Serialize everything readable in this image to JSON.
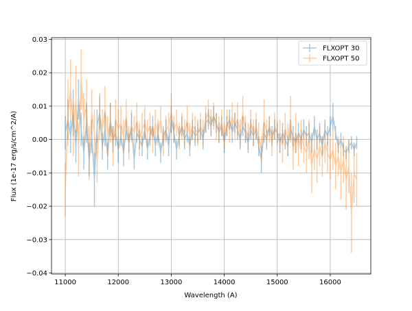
{
  "chart_data": {
    "type": "line",
    "title": "",
    "xlabel": "Wavelength (A)",
    "ylabel": "Flux (1e-17 erg/s/cm^2/A)",
    "xlim": [
      10740,
      16765
    ],
    "ylim": [
      -0.0403,
      0.0305
    ],
    "xticks": [
      11000,
      12000,
      13000,
      14000,
      15000,
      16000
    ],
    "xtick_labels": [
      "11000",
      "12000",
      "13000",
      "14000",
      "15000",
      "16000"
    ],
    "yticks": [
      -0.04,
      -0.03,
      -0.02,
      -0.01,
      0.0,
      0.01,
      0.02,
      0.03
    ],
    "ytick_labels": [
      "−0.04",
      "−0.03",
      "−0.02",
      "−0.01",
      "0.00",
      "0.01",
      "0.02",
      "0.03"
    ],
    "grid": true,
    "legend_position": "top-right",
    "x_start": 11000,
    "x_step": 50,
    "series": [
      {
        "name": "FLXOPT 30",
        "color": "#1f77b4",
        "values": [
          0.002,
          0.006,
          0.001,
          0.008,
          -0.002,
          0.012,
          0.003,
          -0.004,
          0.005,
          -0.006,
          0.001,
          -0.012,
          0.004,
          0.008,
          -0.002,
          0.003,
          -0.005,
          0.006,
          0.0,
          0.002,
          -0.003,
          0.001,
          -0.004,
          0.003,
          -0.001,
          0.004,
          -0.006,
          0.002,
          0.0,
          -0.002,
          0.003,
          -0.003,
          0.001,
          0.004,
          -0.002,
          0.002,
          -0.004,
          0.001,
          0.003,
          -0.002,
          0.006,
          0.002,
          -0.003,
          0.001,
          0.004,
          0.0,
          0.002,
          -0.002,
          0.003,
          0.001,
          0.002,
          0.003,
          0.0,
          0.005,
          0.006,
          0.004,
          0.007,
          0.005,
          0.002,
          0.004,
          -0.001,
          0.004,
          0.006,
          0.002,
          0.005,
          0.003,
          0.0,
          0.004,
          0.002,
          -0.001,
          0.003,
          0.001,
          0.003,
          -0.002,
          -0.006,
          0.002,
          0.0,
          0.004,
          0.001,
          0.003,
          0.002,
          -0.001,
          0.002,
          0.0,
          -0.002,
          0.003,
          0.001,
          -0.001,
          0.002,
          0.0,
          0.003,
          0.001,
          0.002,
          -0.001,
          0.004,
          0.0,
          0.002,
          -0.002,
          0.003,
          0.001,
          0.004,
          0.007,
          0.002,
          -0.002,
          0.0,
          -0.003,
          -0.004,
          -0.002,
          -0.001,
          -0.003,
          -0.001
        ],
        "yerr": [
          0.005,
          0.006,
          0.005,
          0.007,
          0.005,
          0.006,
          0.005,
          0.005,
          0.006,
          0.005,
          0.005,
          0.008,
          0.005,
          0.005,
          0.004,
          0.005,
          0.004,
          0.005,
          0.004,
          0.004,
          0.004,
          0.003,
          0.004,
          0.003,
          0.003,
          0.004,
          0.003,
          0.003,
          0.003,
          0.003,
          0.003,
          0.003,
          0.003,
          0.003,
          0.003,
          0.003,
          0.003,
          0.003,
          0.003,
          0.003,
          0.004,
          0.003,
          0.003,
          0.003,
          0.003,
          0.003,
          0.003,
          0.003,
          0.003,
          0.003,
          0.003,
          0.003,
          0.003,
          0.003,
          0.003,
          0.003,
          0.003,
          0.003,
          0.003,
          0.003,
          0.003,
          0.003,
          0.003,
          0.003,
          0.003,
          0.003,
          0.003,
          0.003,
          0.003,
          0.003,
          0.003,
          0.003,
          0.003,
          0.003,
          0.004,
          0.003,
          0.003,
          0.003,
          0.003,
          0.003,
          0.003,
          0.003,
          0.003,
          0.003,
          0.003,
          0.003,
          0.003,
          0.003,
          0.003,
          0.003,
          0.003,
          0.003,
          0.003,
          0.003,
          0.003,
          0.003,
          0.003,
          0.003,
          0.003,
          0.003,
          0.003,
          0.004,
          0.002,
          0.002,
          0.002,
          0.002,
          0.002,
          0.002,
          0.002,
          0.002,
          0.002
        ]
      },
      {
        "name": "FLXOPT 50",
        "color": "#ff7f0e",
        "values": [
          -0.015,
          0.008,
          0.015,
          0.003,
          0.012,
          -0.003,
          0.018,
          0.006,
          0.01,
          -0.004,
          0.008,
          0.002,
          -0.006,
          0.007,
          0.003,
          0.009,
          0.001,
          0.005,
          -0.002,
          0.006,
          0.003,
          0.005,
          0.001,
          0.007,
          -0.001,
          0.004,
          0.002,
          0.006,
          0.0,
          0.003,
          0.005,
          0.002,
          0.004,
          0.0,
          0.005,
          0.002,
          0.006,
          -0.001,
          0.003,
          0.004,
          0.008,
          0.003,
          0.005,
          0.001,
          0.004,
          0.002,
          0.006,
          0.001,
          0.004,
          0.003,
          0.002,
          0.004,
          0.002,
          0.006,
          0.008,
          0.005,
          0.007,
          0.004,
          0.003,
          0.005,
          0.001,
          0.005,
          0.003,
          0.007,
          0.004,
          0.006,
          0.002,
          0.008,
          0.003,
          0.001,
          0.005,
          0.002,
          0.004,
          0.001,
          -0.003,
          0.006,
          0.002,
          0.003,
          -0.001,
          0.004,
          0.002,
          0.001,
          -0.002,
          0.003,
          0.0,
          0.006,
          -0.004,
          0.002,
          -0.003,
          0.001,
          -0.002,
          -0.004,
          0.0,
          -0.008,
          -0.003,
          -0.006,
          -0.002,
          -0.005,
          -0.001,
          -0.004,
          -0.006,
          -0.003,
          -0.008,
          -0.005,
          -0.01,
          -0.006,
          -0.012,
          -0.008,
          -0.022,
          -0.01,
          -0.012
        ],
        "yerr": [
          0.008,
          0.01,
          0.009,
          0.008,
          0.01,
          0.008,
          0.009,
          0.008,
          0.008,
          0.008,
          0.007,
          0.007,
          0.007,
          0.007,
          0.006,
          0.007,
          0.006,
          0.006,
          0.006,
          0.006,
          0.006,
          0.005,
          0.005,
          0.005,
          0.005,
          0.005,
          0.005,
          0.005,
          0.005,
          0.005,
          0.005,
          0.004,
          0.004,
          0.004,
          0.004,
          0.004,
          0.004,
          0.004,
          0.004,
          0.004,
          0.006,
          0.004,
          0.004,
          0.004,
          0.004,
          0.004,
          0.004,
          0.004,
          0.004,
          0.004,
          0.004,
          0.004,
          0.004,
          0.004,
          0.004,
          0.004,
          0.004,
          0.004,
          0.004,
          0.004,
          0.004,
          0.004,
          0.004,
          0.004,
          0.004,
          0.005,
          0.004,
          0.005,
          0.004,
          0.004,
          0.004,
          0.004,
          0.004,
          0.004,
          0.004,
          0.006,
          0.004,
          0.004,
          0.004,
          0.004,
          0.004,
          0.005,
          0.005,
          0.005,
          0.005,
          0.007,
          0.005,
          0.006,
          0.005,
          0.005,
          0.005,
          0.006,
          0.006,
          0.008,
          0.006,
          0.007,
          0.006,
          0.006,
          0.006,
          0.006,
          0.006,
          0.006,
          0.007,
          0.006,
          0.008,
          0.007,
          0.009,
          0.008,
          0.012,
          0.009,
          0.008
        ]
      }
    ]
  }
}
